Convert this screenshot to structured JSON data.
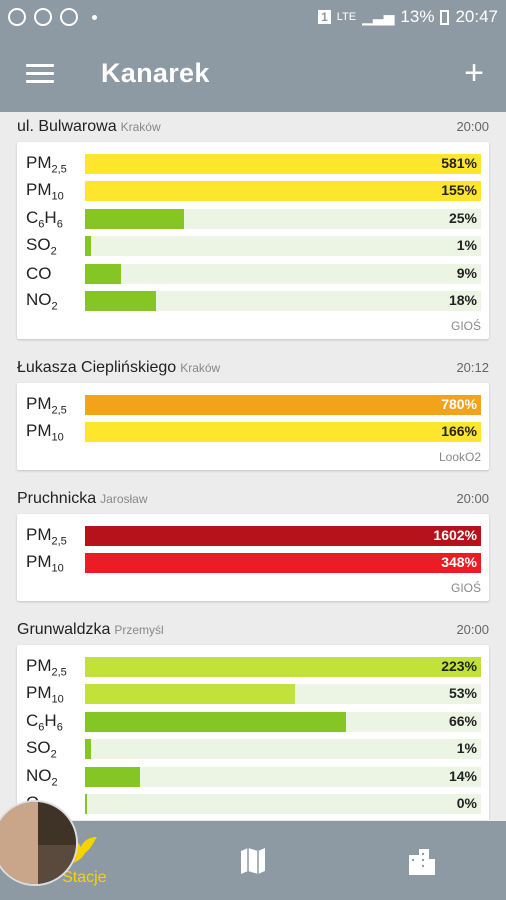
{
  "status": {
    "battery": "13%",
    "time": "20:47",
    "network": "LTE",
    "sim": "1"
  },
  "appbar": {
    "title": "Kanarek",
    "menu_icon": "hamburger-icon",
    "add_icon": "plus-icon"
  },
  "stations": [
    {
      "name": "ul. Bulwarowa",
      "city": "Kraków",
      "time": "20:00",
      "source": "GIOŚ",
      "rows": [
        {
          "pol": "PM",
          "sub": "2,5",
          "value": "581%",
          "fraction": 1.0,
          "color": "#fde62b"
        },
        {
          "pol": "PM",
          "sub": "10",
          "value": "155%",
          "fraction": 1.0,
          "color": "#fde62b"
        },
        {
          "pol": "C6H6",
          "value": "25%",
          "fraction": 0.25,
          "color": "#86c624"
        },
        {
          "pol": "SO",
          "sub": "2",
          "value": "1%",
          "fraction": 0.01,
          "color": "#86c624"
        },
        {
          "pol": "CO",
          "value": "9%",
          "fraction": 0.09,
          "color": "#86c624"
        },
        {
          "pol": "NO",
          "sub": "2",
          "value": "18%",
          "fraction": 0.18,
          "color": "#86c624"
        }
      ]
    },
    {
      "name": "Łukasza Cieplińskiego",
      "city": "Kraków",
      "time": "20:12",
      "source": "LookO2",
      "rows": [
        {
          "pol": "PM",
          "sub": "2,5",
          "value": "780%",
          "fraction": 1.0,
          "color": "#f2a21b",
          "light": true
        },
        {
          "pol": "PM",
          "sub": "10",
          "value": "166%",
          "fraction": 1.0,
          "color": "#fde62b"
        }
      ]
    },
    {
      "name": "Pruchnicka",
      "city": "Jarosław",
      "time": "20:00",
      "source": "GIOŚ",
      "rows": [
        {
          "pol": "PM",
          "sub": "2,5",
          "value": "1602%",
          "fraction": 1.0,
          "color": "#b5121b",
          "light": true
        },
        {
          "pol": "PM",
          "sub": "10",
          "value": "348%",
          "fraction": 1.0,
          "color": "#ec1c24",
          "light": true
        }
      ]
    },
    {
      "name": "Grunwaldzka",
      "city": "Przemyśl",
      "time": "20:00",
      "source": "GIOŚ",
      "rows": [
        {
          "pol": "PM",
          "sub": "2,5",
          "value": "223%",
          "fraction": 1.0,
          "color": "#c2e23a"
        },
        {
          "pol": "PM",
          "sub": "10",
          "value": "53%",
          "fraction": 0.53,
          "color": "#c2e23a"
        },
        {
          "pol": "C6H6",
          "value": "66%",
          "fraction": 0.66,
          "color": "#86c624"
        },
        {
          "pol": "SO",
          "sub": "2",
          "value": "1%",
          "fraction": 0.01,
          "color": "#86c624"
        },
        {
          "pol": "NO",
          "sub": "2",
          "value": "14%",
          "fraction": 0.14,
          "color": "#86c624"
        },
        {
          "pol": "O",
          "sub": "3",
          "value": "0%",
          "fraction": 0.0,
          "color": "#86c624"
        }
      ]
    }
  ],
  "bottomnav": {
    "items": [
      {
        "label": "Stacje",
        "icon": "bird-icon",
        "active": true
      },
      {
        "label": "",
        "icon": "map-icon",
        "active": false
      },
      {
        "label": "",
        "icon": "city-icon",
        "active": false
      }
    ]
  }
}
